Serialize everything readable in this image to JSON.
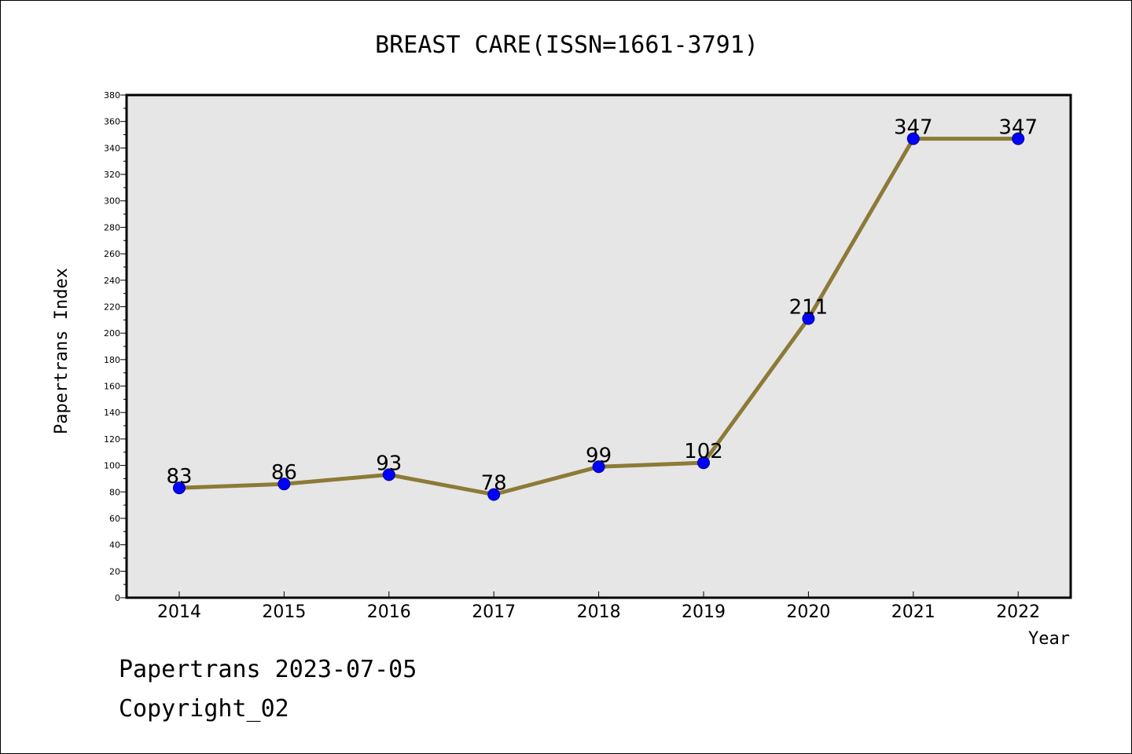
{
  "chart_data": {
    "type": "line",
    "title": "BREAST CARE(ISSN=1661-3791)",
    "xlabel": "Year",
    "ylabel": "Papertrans Index",
    "categories": [
      "2014",
      "2015",
      "2016",
      "2017",
      "2018",
      "2019",
      "2020",
      "2021",
      "2022"
    ],
    "series": [
      {
        "values": [
          83,
          86,
          93,
          78,
          99,
          102,
          211,
          347,
          347
        ]
      }
    ],
    "data_labels": [
      "83",
      "86",
      "93",
      "78",
      "99",
      "102",
      "211",
      "347",
      "347"
    ],
    "ylim": [
      0,
      380
    ],
    "yticks": [
      "0",
      "20",
      "40",
      "60",
      "80",
      "100",
      "120",
      "140",
      "160",
      "180",
      "200",
      "220",
      "240",
      "260",
      "280",
      "300",
      "320",
      "340",
      "360",
      "380"
    ],
    "grid": false,
    "legend": "none",
    "colors": {
      "line": "#8c7a37",
      "marker": "#0000ff",
      "plot_background": "#e6e6e6"
    }
  },
  "footer": {
    "date_text": "Papertrans 2023-07-05",
    "copyright_text": "Copyright_02"
  }
}
